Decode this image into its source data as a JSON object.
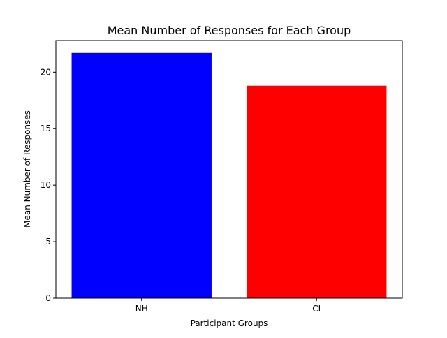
{
  "chart_data": {
    "type": "bar",
    "title": "Mean Number of Responses for Each Group",
    "xlabel": "Participant Groups",
    "ylabel": "Mean Number of Responses",
    "categories": [
      "NH",
      "CI"
    ],
    "values": [
      21.7,
      18.8
    ],
    "colors": [
      "#0000ff",
      "#ff0000"
    ],
    "ylim": [
      0,
      22.8
    ],
    "yticks": [
      0,
      5,
      10,
      15,
      20
    ],
    "grid": false,
    "legend": "none"
  }
}
